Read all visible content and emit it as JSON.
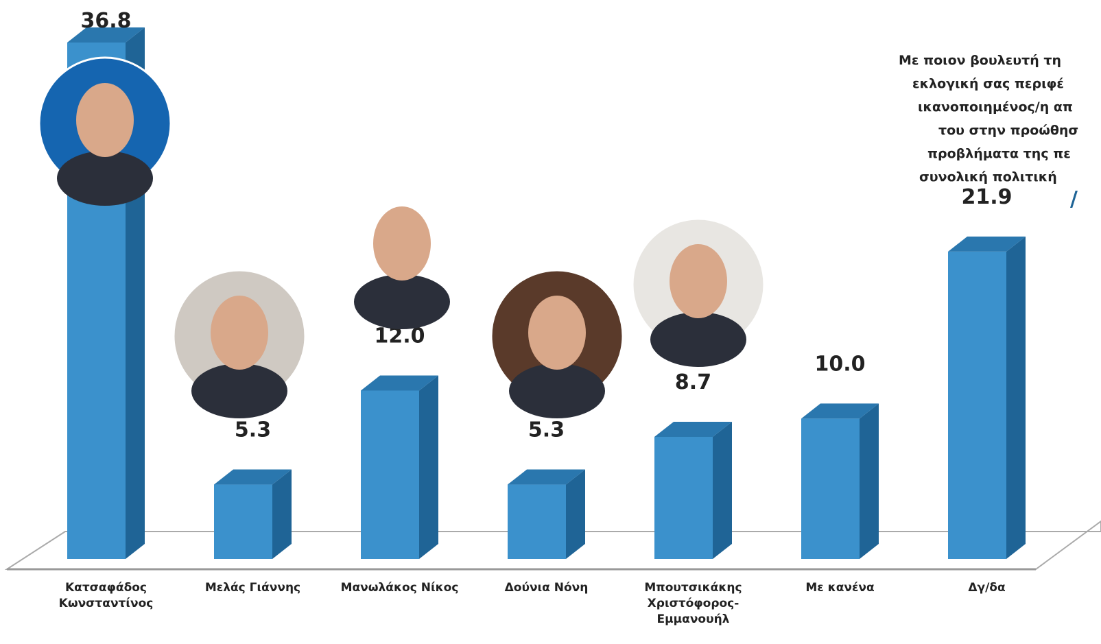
{
  "chart_data": {
    "type": "bar3d",
    "title_lines": [
      "Με ποιον βουλευτή τη",
      "εκλογική σας περιφέ",
      "ικανοποιημένος/η απ",
      "του στην προώθησ",
      "προβλήματα της πε",
      "συνολική πολιτική"
    ],
    "categories": [
      "Κατσαφάδος\nΚωνσταντίνος",
      "Μελάς Γιάννης",
      "Μανωλάκος Νίκος",
      "Δούνια Νόνη",
      "Μπουτσικάκης\nΧριστόφορος-\nΕμμανουήλ",
      "Με κανένα",
      "Δγ/δα"
    ],
    "values": [
      36.8,
      5.3,
      12.0,
      5.3,
      8.7,
      10.0,
      21.9
    ],
    "value_labels": [
      "36.8",
      "5.3",
      "12.0",
      "5.3",
      "8.7",
      "10.0",
      "21.9"
    ],
    "color": "#3b91cc"
  }
}
